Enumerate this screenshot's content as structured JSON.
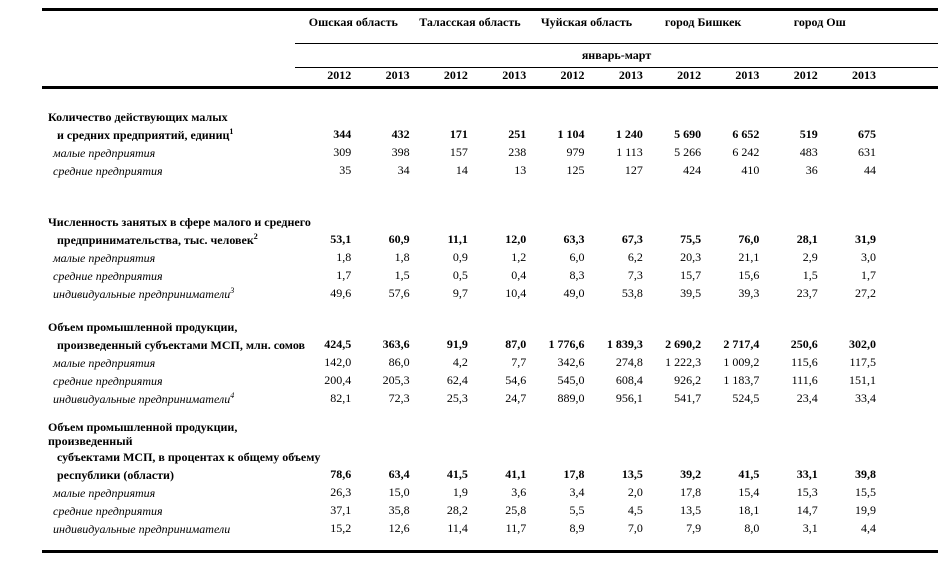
{
  "table": {
    "period_label": "январь-март",
    "column_groups": [
      {
        "label": "Ошская область"
      },
      {
        "label": "Таласская область"
      },
      {
        "label": "Чуйская область"
      },
      {
        "label": "город Бишкек"
      },
      {
        "label": "город Ош"
      }
    ],
    "years": [
      "2012",
      "2013",
      "2012",
      "2013",
      "2012",
      "2013",
      "2012",
      "2013",
      "2012",
      "2013"
    ],
    "sections": [
      {
        "title_lines": [
          {
            "text": "Количество действующих малых"
          },
          {
            "text": "и средних предприятий, единиц",
            "sup": "1"
          }
        ],
        "values": [
          "344",
          "432",
          "171",
          "251",
          "1 104",
          "1 240",
          "5 690",
          "6 652",
          "519",
          "675"
        ],
        "rows": [
          {
            "label": "малые предприятия",
            "values": [
              "309",
              "398",
              "157",
              "238",
              "979",
              "1 113",
              "5 266",
              "6 242",
              "483",
              "631"
            ]
          },
          {
            "label": "средние предприятия",
            "values": [
              "35",
              "34",
              "14",
              "13",
              "125",
              "127",
              "424",
              "410",
              "36",
              "44"
            ]
          }
        ]
      },
      {
        "title_lines": [
          {
            "text": "Численность занятых в сфере малого и среднего"
          },
          {
            "text": "предпринимательства, тыс. человек",
            "sup": "2"
          }
        ],
        "values": [
          "53,1",
          "60,9",
          "11,1",
          "12,0",
          "63,3",
          "67,3",
          "75,5",
          "76,0",
          "28,1",
          "31,9"
        ],
        "rows": [
          {
            "label": "малые предприятия",
            "values": [
              "1,8",
              "1,8",
              "0,9",
              "1,2",
              "6,0",
              "6,2",
              "20,3",
              "21,1",
              "2,9",
              "3,0"
            ]
          },
          {
            "label": "средние предприятия",
            "values": [
              "1,7",
              "1,5",
              "0,5",
              "0,4",
              "8,3",
              "7,3",
              "15,7",
              "15,6",
              "1,5",
              "1,7"
            ]
          },
          {
            "label": "индивидуальные предприниматели",
            "sup": "3",
            "values": [
              "49,6",
              "57,6",
              "9,7",
              "10,4",
              "49,0",
              "53,8",
              "39,5",
              "39,3",
              "23,7",
              "27,2"
            ]
          }
        ]
      },
      {
        "title_lines": [
          {
            "text": "Объем промышленной продукции,"
          },
          {
            "text": "произведенный субъектами МСП, млн. сомов"
          }
        ],
        "values": [
          "424,5",
          "363,6",
          "91,9",
          "87,0",
          "1 776,6",
          "1 839,3",
          "2 690,2",
          "2 717,4",
          "250,6",
          "302,0"
        ],
        "rows": [
          {
            "label": "малые предприятия",
            "values": [
              "142,0",
              "86,0",
              "4,2",
              "7,7",
              "342,6",
              "274,8",
              "1 222,3",
              "1 009,2",
              "115,6",
              "117,5"
            ]
          },
          {
            "label": "средние предприятия",
            "values": [
              "200,4",
              "205,3",
              "62,4",
              "54,6",
              "545,0",
              "608,4",
              "926,2",
              "1 183,7",
              "111,6",
              "151,1"
            ]
          },
          {
            "label": "индивидуальные предприниматели",
            "sup": "4",
            "values": [
              "82,1",
              "72,3",
              "25,3",
              "24,7",
              "889,0",
              "956,1",
              "541,7",
              "524,5",
              "23,4",
              "33,4"
            ]
          }
        ]
      },
      {
        "title_lines": [
          {
            "text": "Объем промышленной продукции,"
          },
          {
            "text": "произведенный"
          },
          {
            "text": "субъектами МСП, в процентах к общему объему"
          },
          {
            "text": "республики (области)"
          }
        ],
        "values": [
          "78,6",
          "63,4",
          "41,5",
          "41,1",
          "17,8",
          "13,5",
          "39,2",
          "41,5",
          "33,1",
          "39,8"
        ],
        "rows": [
          {
            "label": "малые предприятия",
            "values": [
              "26,3",
              "15,0",
              "1,9",
              "3,6",
              "3,4",
              "2,0",
              "17,8",
              "15,4",
              "15,3",
              "15,5"
            ]
          },
          {
            "label": "средние предприятия",
            "values": [
              "37,1",
              "35,8",
              "28,2",
              "25,8",
              "5,5",
              "4,5",
              "13,5",
              "18,1",
              "14,7",
              "19,9"
            ]
          },
          {
            "label": "индивидуальные предприниматели",
            "values": [
              "15,2",
              "12,6",
              "11,4",
              "11,7",
              "8,9",
              "7,0",
              "7,9",
              "8,0",
              "3,1",
              "4,4"
            ]
          }
        ]
      }
    ]
  }
}
